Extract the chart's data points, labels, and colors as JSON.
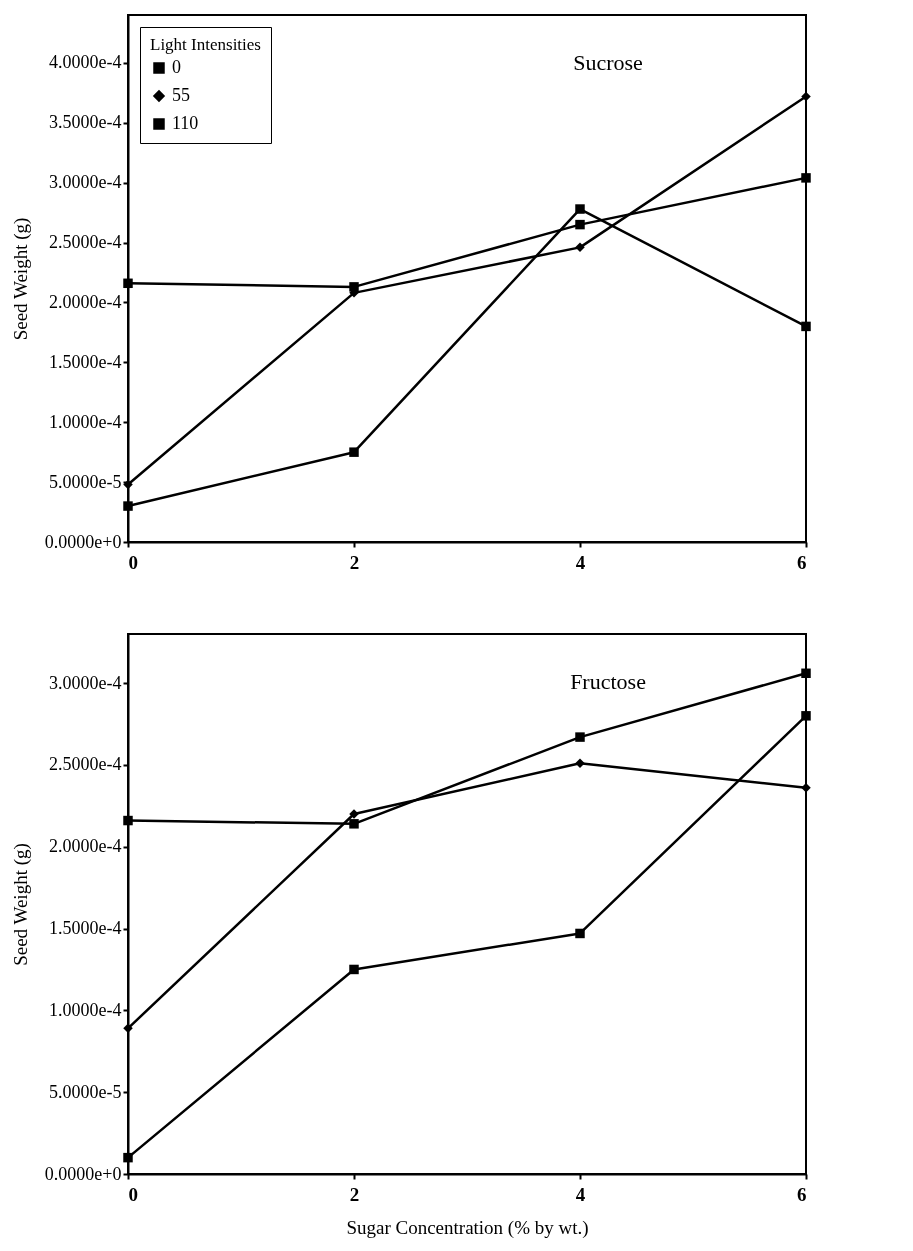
{
  "chart_data": [
    {
      "type": "line",
      "title": "Sucrose",
      "ylabel": "Seed Weight (g)",
      "legend_title": "Light Intensities",
      "legend": "top left",
      "grid": false,
      "line_style": "solid",
      "x": [
        0,
        2,
        4,
        6
      ],
      "xlim": [
        0,
        6
      ],
      "xticks": [
        0,
        2,
        4,
        6
      ],
      "ylim": [
        0,
        0.00044
      ],
      "yticks": [
        {
          "value": 0,
          "label": "0.0000e+0"
        },
        {
          "value": 5e-05,
          "label": "5.0000e-5"
        },
        {
          "value": 0.0001,
          "label": "1.0000e-4"
        },
        {
          "value": 0.00015,
          "label": "1.5000e-4"
        },
        {
          "value": 0.0002,
          "label": "2.0000e-4"
        },
        {
          "value": 0.00025,
          "label": "2.5000e-4"
        },
        {
          "value": 0.0003,
          "label": "3.0000e-4"
        },
        {
          "value": 0.00035,
          "label": "3.5000e-4"
        },
        {
          "value": 0.0004,
          "label": "4.0000e-4"
        }
      ],
      "series": [
        {
          "name": "0",
          "color": "#000000",
          "marker": "square",
          "values": [
            3e-05,
            7.5e-05,
            0.000278,
            0.00018
          ]
        },
        {
          "name": "55",
          "color": "#000000",
          "marker": "diamond",
          "values": [
            4.8e-05,
            0.000208,
            0.000246,
            0.000372
          ]
        },
        {
          "name": "110",
          "color": "#000000",
          "marker": "square",
          "values": [
            0.000216,
            0.000213,
            0.000265,
            0.000304
          ]
        }
      ]
    },
    {
      "type": "line",
      "title": "Fructose",
      "xlabel": "Sugar Concentration (% by wt.)",
      "ylabel": "Seed Weight (g)",
      "legend": false,
      "grid": false,
      "line_style": "solid",
      "x": [
        0,
        2,
        4,
        6
      ],
      "xlim": [
        0,
        6
      ],
      "xticks": [
        0,
        2,
        4,
        6
      ],
      "ylim": [
        0,
        0.00033
      ],
      "yticks": [
        {
          "value": 0,
          "label": "0.0000e+0"
        },
        {
          "value": 5e-05,
          "label": "5.0000e-5"
        },
        {
          "value": 0.0001,
          "label": "1.0000e-4"
        },
        {
          "value": 0.00015,
          "label": "1.5000e-4"
        },
        {
          "value": 0.0002,
          "label": "2.0000e-4"
        },
        {
          "value": 0.00025,
          "label": "2.5000e-4"
        },
        {
          "value": 0.0003,
          "label": "3.0000e-4"
        }
      ],
      "series": [
        {
          "name": "0",
          "color": "#000000",
          "marker": "square",
          "values": [
            1e-05,
            0.000125,
            0.000147,
            0.00028
          ]
        },
        {
          "name": "55",
          "color": "#000000",
          "marker": "diamond",
          "values": [
            8.9e-05,
            0.00022,
            0.000251,
            0.000236
          ]
        },
        {
          "name": "110",
          "color": "#000000",
          "marker": "square",
          "values": [
            0.000216,
            0.000214,
            0.000267,
            0.000306
          ]
        }
      ]
    }
  ]
}
